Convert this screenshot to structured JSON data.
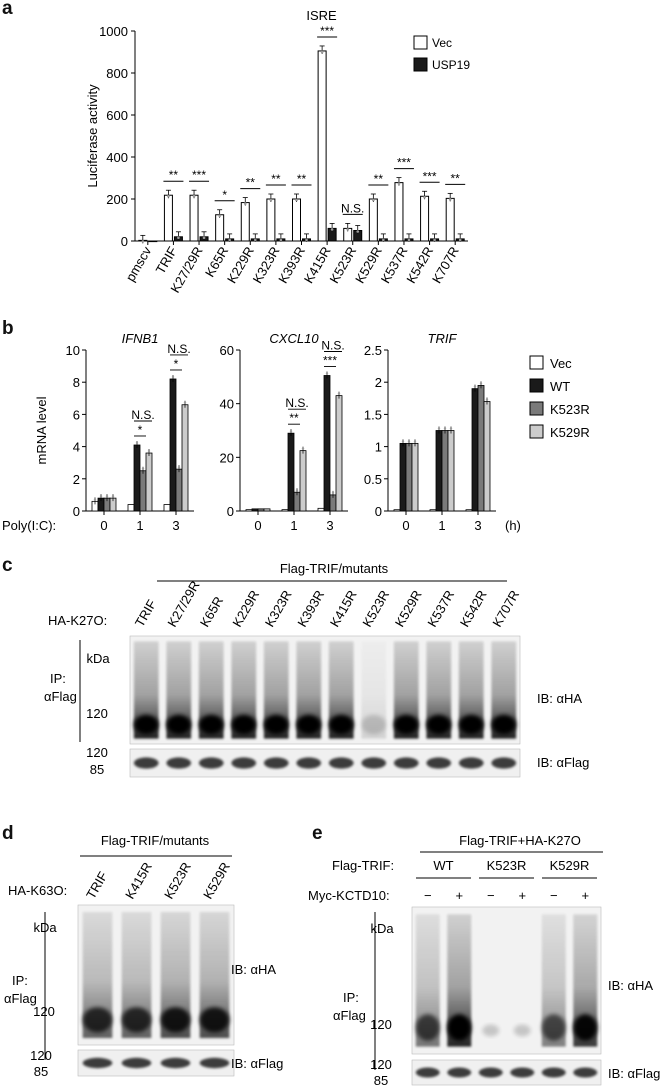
{
  "panels": {
    "a": "a",
    "b": "b",
    "c": "c",
    "d": "d",
    "e": "e"
  },
  "chart_data": [
    {
      "panel": "a",
      "type": "bar",
      "title": "ISRE",
      "ylabel": "Luciferase activity",
      "ylim": [
        0,
        1000
      ],
      "yticks": [
        0,
        200,
        400,
        600,
        800,
        1000
      ],
      "categories": [
        "pmscv",
        "TRIF",
        "K27/29R",
        "K65R",
        "K229R",
        "K323R",
        "K393R",
        "K415R",
        "K523R",
        "K529R",
        "K537R",
        "K542R",
        "K707R"
      ],
      "series": [
        {
          "name": "Vec",
          "values": [
            3,
            218,
            218,
            125,
            183,
            200,
            200,
            905,
            60,
            200,
            278,
            213,
            203
          ],
          "color": "#ffffff"
        },
        {
          "name": "USP19",
          "values": [
            0,
            20,
            20,
            10,
            10,
            10,
            10,
            60,
            50,
            10,
            10,
            10,
            10
          ],
          "color": "#1a1a1a"
        }
      ],
      "significance": [
        {
          "category": "TRIF",
          "label": "**"
        },
        {
          "category": "K27/29R",
          "label": "***"
        },
        {
          "category": "K65R",
          "label": "*"
        },
        {
          "category": "K229R",
          "label": "**"
        },
        {
          "category": "K323R",
          "label": "**"
        },
        {
          "category": "K393R",
          "label": "**"
        },
        {
          "category": "K415R",
          "label": "***"
        },
        {
          "category": "K523R",
          "label": "N.S."
        },
        {
          "category": "K529R",
          "label": "**"
        },
        {
          "category": "K537R",
          "label": "***"
        },
        {
          "category": "K542R",
          "label": "***"
        },
        {
          "category": "K707R",
          "label": "**"
        }
      ],
      "legend_position": "top-right"
    },
    {
      "panel": "b",
      "type": "bar",
      "title": "IFNB1",
      "ylabel": "mRNA level",
      "ylim": [
        0,
        10
      ],
      "yticks": [
        0,
        2,
        4,
        6,
        8,
        10
      ],
      "categories": [
        "0",
        "1",
        "3"
      ],
      "series": [
        {
          "name": "Vec",
          "values": [
            0.6,
            0.4,
            0.4
          ]
        },
        {
          "name": "WT",
          "values": [
            0.8,
            4.1,
            8.2
          ]
        },
        {
          "name": "K523R",
          "values": [
            0.8,
            2.5,
            2.6
          ]
        },
        {
          "name": "K529R",
          "values": [
            0.8,
            3.6,
            6.6
          ]
        }
      ],
      "significance": [
        {
          "category": "1",
          "lines": [
            "N.S.",
            "*"
          ]
        },
        {
          "category": "3",
          "lines": [
            "N.S.",
            "*"
          ]
        }
      ]
    },
    {
      "panel": "b",
      "type": "bar",
      "title": "CXCL10",
      "ylim": [
        0,
        60
      ],
      "yticks": [
        0,
        20,
        40,
        60
      ],
      "categories": [
        "0",
        "1",
        "3"
      ],
      "series": [
        {
          "name": "Vec",
          "values": [
            0.5,
            0.5,
            1
          ]
        },
        {
          "name": "WT",
          "values": [
            0.8,
            29,
            50.5
          ]
        },
        {
          "name": "K523R",
          "values": [
            0.8,
            7,
            6
          ]
        },
        {
          "name": "K529R",
          "values": [
            0.8,
            22.5,
            43
          ]
        }
      ],
      "significance": [
        {
          "category": "1",
          "lines": [
            "N.S.",
            "**"
          ]
        },
        {
          "category": "3",
          "lines": [
            "N.S.",
            "***"
          ]
        }
      ]
    },
    {
      "panel": "b",
      "type": "bar",
      "title": "TRIF",
      "ylim": [
        0,
        2.5
      ],
      "yticks": [
        0,
        0.5,
        1.0,
        1.5,
        2.0,
        2.5
      ],
      "categories": [
        "0",
        "1",
        "3"
      ],
      "series": [
        {
          "name": "Vec",
          "values": [
            0.02,
            0.02,
            0.02
          ]
        },
        {
          "name": "WT",
          "values": [
            1.05,
            1.25,
            1.9
          ]
        },
        {
          "name": "K523R",
          "values": [
            1.05,
            1.25,
            1.95
          ]
        },
        {
          "name": "K529R",
          "values": [
            1.05,
            1.25,
            1.7
          ]
        }
      ],
      "significance": []
    }
  ],
  "panel_b": {
    "xlabel": "Poly(I:C):",
    "unit": "(h)",
    "legend": [
      {
        "label": "Vec",
        "color": "#ffffff"
      },
      {
        "label": "WT",
        "color": "#1a1a1a"
      },
      {
        "label": "K523R",
        "color": "#7a7a7a"
      },
      {
        "label": "K529R",
        "color": "#cccccc"
      }
    ],
    "colors": [
      "#ffffff",
      "#1a1a1a",
      "#7a7a7a",
      "#cccccc"
    ]
  },
  "panel_c": {
    "header": "Flag-TRIF/mutants",
    "row_label": "HA-K27O:",
    "lanes": [
      "TRIF",
      "K27/29R",
      "K65R",
      "K229R",
      "K323R",
      "K393R",
      "K415R",
      "K523R",
      "K529R",
      "K537R",
      "K542R",
      "K707R"
    ],
    "ip_label": [
      "IP:",
      "αFlag"
    ],
    "kda": "kDa",
    "mw_top": "120",
    "mw_bottom": [
      "120",
      "85"
    ],
    "ib_top": "IB: αHA",
    "ib_bottom": "IB: αFlag",
    "intensity": [
      1,
      1,
      1,
      1,
      1,
      1,
      1,
      0.15,
      1,
      1,
      1,
      1
    ]
  },
  "panel_d": {
    "header": "Flag-TRIF/mutants",
    "row_label": "HA-K63O:",
    "lanes": [
      "TRIF",
      "K415R",
      "K523R",
      "K529R"
    ],
    "ip_label": [
      "IP:",
      "αFlag"
    ],
    "kda": "kDa",
    "mw_top": "120",
    "mw_bottom": [
      "120",
      "85"
    ],
    "ib_top": "IB: αHA",
    "ib_bottom": "IB: αFlag",
    "intensity": [
      0.7,
      0.7,
      0.8,
      0.8
    ]
  },
  "panel_e": {
    "header": "Flag-TRIF+HA-K27O",
    "row1_label": "Flag-TRIF:",
    "groups": [
      "WT",
      "K523R",
      "K529R"
    ],
    "row2_label": "Myc-KCTD10:",
    "signs": [
      "−",
      "+",
      "−",
      "+",
      "−",
      "+"
    ],
    "ip_label": [
      "IP:",
      "αFlag"
    ],
    "kda": "kDa",
    "mw_top": "120",
    "mw_bottom": [
      "120",
      "85"
    ],
    "ib_top": "IB: αHA",
    "ib_bottom": "IB: αFlag",
    "intensity": [
      0.6,
      1,
      0.05,
      0.05,
      0.55,
      0.9
    ]
  }
}
